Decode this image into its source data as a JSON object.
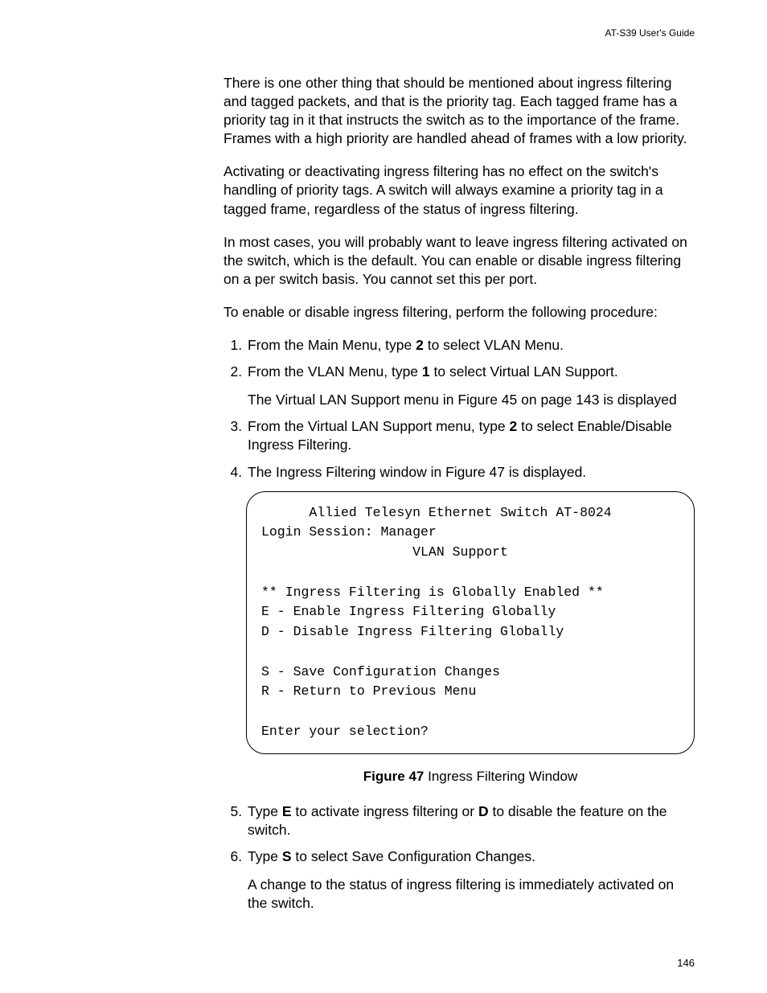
{
  "header": {
    "running_title": "AT-S39 User's Guide"
  },
  "paras": {
    "p1": "There is one other thing that should be mentioned about ingress filtering and tagged packets, and that is the priority tag. Each tagged frame has a priority tag in it that instructs the switch as to the importance of the frame. Frames with a high priority are handled ahead of frames with a low priority.",
    "p2": "Activating or deactivating ingress filtering has no effect on the switch's handling of priority tags. A switch will always examine a priority tag in a tagged frame, regardless of the status of ingress filtering.",
    "p3": "In most cases, you will probably want to leave ingress filtering activated on the switch, which is the default. You can enable or disable ingress filtering on a per switch basis. You cannot set this per port.",
    "p4": "To enable or disable ingress filtering, perform the following procedure:"
  },
  "steps": {
    "s1a": "From the Main Menu, type ",
    "s1b": "2",
    "s1c": " to select VLAN Menu.",
    "s2a": "From the VLAN Menu, type ",
    "s2b": "1",
    "s2c": " to select Virtual LAN Support.",
    "s2sub": "The Virtual LAN Support menu in Figure 45 on page 143 is displayed",
    "s3a": "From the Virtual LAN Support menu, type ",
    "s3b": "2",
    "s3c": " to select Enable/Disable Ingress Filtering.",
    "s4": "The Ingress Filtering window in Figure 47 is displayed.",
    "s5a": "Type ",
    "s5b": "E",
    "s5c": " to activate ingress filtering or ",
    "s5d": "D",
    "s5e": " to disable the feature on the switch.",
    "s6a": "Type ",
    "s6b": "S",
    "s6c": " to select Save Configuration Changes.",
    "s6sub": "A change to the status of ingress filtering is immediately activated on the switch."
  },
  "terminal": {
    "l1": "      Allied Telesyn Ethernet Switch AT-8024",
    "l2": "Login Session: Manager",
    "l3": "                   VLAN Support",
    "l4": "",
    "l5": "** Ingress Filtering is Globally Enabled **",
    "l6": "E - Enable Ingress Filtering Globally",
    "l7": "D - Disable Ingress Filtering Globally",
    "l8": "",
    "l9": "S - Save Configuration Changes",
    "l10": "R - Return to Previous Menu",
    "l11": "",
    "l12": "Enter your selection?"
  },
  "figure": {
    "label": "Figure 47",
    "caption": "  Ingress Filtering Window"
  },
  "page_number": "146"
}
